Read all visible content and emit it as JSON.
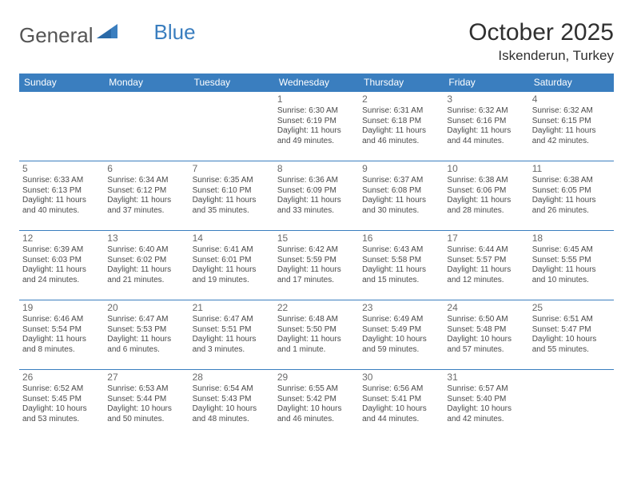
{
  "brand": {
    "part1": "General",
    "part2": "Blue"
  },
  "title": "October 2025",
  "location": "Iskenderun, Turkey",
  "colors": {
    "header_bg": "#3a7ebf",
    "header_text": "#ffffff",
    "border": "#3a7ebf",
    "text": "#4a4a4a",
    "title_color": "#303030"
  },
  "typography": {
    "title_fontsize": 30,
    "location_fontsize": 17,
    "dayhead_fontsize": 12,
    "cell_fontsize": 10
  },
  "day_headers": [
    "Sunday",
    "Monday",
    "Tuesday",
    "Wednesday",
    "Thursday",
    "Friday",
    "Saturday"
  ],
  "weeks": [
    [
      {},
      {},
      {},
      {
        "num": "1",
        "sunrise": "Sunrise: 6:30 AM",
        "sunset": "Sunset: 6:19 PM",
        "day1": "Daylight: 11 hours",
        "day2": "and 49 minutes."
      },
      {
        "num": "2",
        "sunrise": "Sunrise: 6:31 AM",
        "sunset": "Sunset: 6:18 PM",
        "day1": "Daylight: 11 hours",
        "day2": "and 46 minutes."
      },
      {
        "num": "3",
        "sunrise": "Sunrise: 6:32 AM",
        "sunset": "Sunset: 6:16 PM",
        "day1": "Daylight: 11 hours",
        "day2": "and 44 minutes."
      },
      {
        "num": "4",
        "sunrise": "Sunrise: 6:32 AM",
        "sunset": "Sunset: 6:15 PM",
        "day1": "Daylight: 11 hours",
        "day2": "and 42 minutes."
      }
    ],
    [
      {
        "num": "5",
        "sunrise": "Sunrise: 6:33 AM",
        "sunset": "Sunset: 6:13 PM",
        "day1": "Daylight: 11 hours",
        "day2": "and 40 minutes."
      },
      {
        "num": "6",
        "sunrise": "Sunrise: 6:34 AM",
        "sunset": "Sunset: 6:12 PM",
        "day1": "Daylight: 11 hours",
        "day2": "and 37 minutes."
      },
      {
        "num": "7",
        "sunrise": "Sunrise: 6:35 AM",
        "sunset": "Sunset: 6:10 PM",
        "day1": "Daylight: 11 hours",
        "day2": "and 35 minutes."
      },
      {
        "num": "8",
        "sunrise": "Sunrise: 6:36 AM",
        "sunset": "Sunset: 6:09 PM",
        "day1": "Daylight: 11 hours",
        "day2": "and 33 minutes."
      },
      {
        "num": "9",
        "sunrise": "Sunrise: 6:37 AM",
        "sunset": "Sunset: 6:08 PM",
        "day1": "Daylight: 11 hours",
        "day2": "and 30 minutes."
      },
      {
        "num": "10",
        "sunrise": "Sunrise: 6:38 AM",
        "sunset": "Sunset: 6:06 PM",
        "day1": "Daylight: 11 hours",
        "day2": "and 28 minutes."
      },
      {
        "num": "11",
        "sunrise": "Sunrise: 6:38 AM",
        "sunset": "Sunset: 6:05 PM",
        "day1": "Daylight: 11 hours",
        "day2": "and 26 minutes."
      }
    ],
    [
      {
        "num": "12",
        "sunrise": "Sunrise: 6:39 AM",
        "sunset": "Sunset: 6:03 PM",
        "day1": "Daylight: 11 hours",
        "day2": "and 24 minutes."
      },
      {
        "num": "13",
        "sunrise": "Sunrise: 6:40 AM",
        "sunset": "Sunset: 6:02 PM",
        "day1": "Daylight: 11 hours",
        "day2": "and 21 minutes."
      },
      {
        "num": "14",
        "sunrise": "Sunrise: 6:41 AM",
        "sunset": "Sunset: 6:01 PM",
        "day1": "Daylight: 11 hours",
        "day2": "and 19 minutes."
      },
      {
        "num": "15",
        "sunrise": "Sunrise: 6:42 AM",
        "sunset": "Sunset: 5:59 PM",
        "day1": "Daylight: 11 hours",
        "day2": "and 17 minutes."
      },
      {
        "num": "16",
        "sunrise": "Sunrise: 6:43 AM",
        "sunset": "Sunset: 5:58 PM",
        "day1": "Daylight: 11 hours",
        "day2": "and 15 minutes."
      },
      {
        "num": "17",
        "sunrise": "Sunrise: 6:44 AM",
        "sunset": "Sunset: 5:57 PM",
        "day1": "Daylight: 11 hours",
        "day2": "and 12 minutes."
      },
      {
        "num": "18",
        "sunrise": "Sunrise: 6:45 AM",
        "sunset": "Sunset: 5:55 PM",
        "day1": "Daylight: 11 hours",
        "day2": "and 10 minutes."
      }
    ],
    [
      {
        "num": "19",
        "sunrise": "Sunrise: 6:46 AM",
        "sunset": "Sunset: 5:54 PM",
        "day1": "Daylight: 11 hours",
        "day2": "and 8 minutes."
      },
      {
        "num": "20",
        "sunrise": "Sunrise: 6:47 AM",
        "sunset": "Sunset: 5:53 PM",
        "day1": "Daylight: 11 hours",
        "day2": "and 6 minutes."
      },
      {
        "num": "21",
        "sunrise": "Sunrise: 6:47 AM",
        "sunset": "Sunset: 5:51 PM",
        "day1": "Daylight: 11 hours",
        "day2": "and 3 minutes."
      },
      {
        "num": "22",
        "sunrise": "Sunrise: 6:48 AM",
        "sunset": "Sunset: 5:50 PM",
        "day1": "Daylight: 11 hours",
        "day2": "and 1 minute."
      },
      {
        "num": "23",
        "sunrise": "Sunrise: 6:49 AM",
        "sunset": "Sunset: 5:49 PM",
        "day1": "Daylight: 10 hours",
        "day2": "and 59 minutes."
      },
      {
        "num": "24",
        "sunrise": "Sunrise: 6:50 AM",
        "sunset": "Sunset: 5:48 PM",
        "day1": "Daylight: 10 hours",
        "day2": "and 57 minutes."
      },
      {
        "num": "25",
        "sunrise": "Sunrise: 6:51 AM",
        "sunset": "Sunset: 5:47 PM",
        "day1": "Daylight: 10 hours",
        "day2": "and 55 minutes."
      }
    ],
    [
      {
        "num": "26",
        "sunrise": "Sunrise: 6:52 AM",
        "sunset": "Sunset: 5:45 PM",
        "day1": "Daylight: 10 hours",
        "day2": "and 53 minutes."
      },
      {
        "num": "27",
        "sunrise": "Sunrise: 6:53 AM",
        "sunset": "Sunset: 5:44 PM",
        "day1": "Daylight: 10 hours",
        "day2": "and 50 minutes."
      },
      {
        "num": "28",
        "sunrise": "Sunrise: 6:54 AM",
        "sunset": "Sunset: 5:43 PM",
        "day1": "Daylight: 10 hours",
        "day2": "and 48 minutes."
      },
      {
        "num": "29",
        "sunrise": "Sunrise: 6:55 AM",
        "sunset": "Sunset: 5:42 PM",
        "day1": "Daylight: 10 hours",
        "day2": "and 46 minutes."
      },
      {
        "num": "30",
        "sunrise": "Sunrise: 6:56 AM",
        "sunset": "Sunset: 5:41 PM",
        "day1": "Daylight: 10 hours",
        "day2": "and 44 minutes."
      },
      {
        "num": "31",
        "sunrise": "Sunrise: 6:57 AM",
        "sunset": "Sunset: 5:40 PM",
        "day1": "Daylight: 10 hours",
        "day2": "and 42 minutes."
      },
      {}
    ]
  ]
}
